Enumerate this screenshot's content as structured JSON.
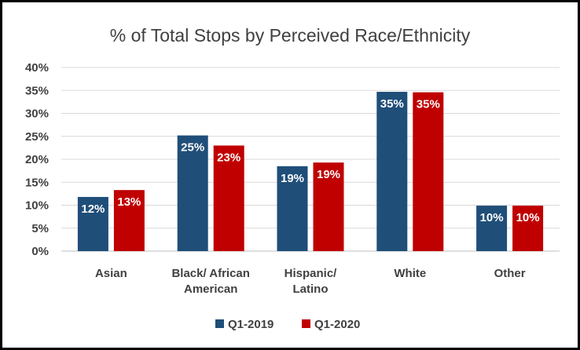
{
  "chart_data": {
    "type": "bar",
    "title": "% of Total Stops by Perceived Race/Ethnicity",
    "categories": [
      [
        "Asian"
      ],
      [
        "Black/ African",
        "American"
      ],
      [
        "Hispanic/",
        "Latino"
      ],
      [
        "White"
      ],
      [
        "Other"
      ]
    ],
    "series": [
      {
        "name": "Q1-2019",
        "color": "#1f4e79",
        "values": [
          11.8,
          25.2,
          18.5,
          34.7,
          9.9
        ],
        "labels": [
          "12%",
          "25%",
          "19%",
          "35%",
          "10%"
        ]
      },
      {
        "name": "Q1-2020",
        "color": "#c00000",
        "values": [
          13.3,
          23.0,
          19.3,
          34.6,
          9.9
        ],
        "labels": [
          "13%",
          "23%",
          "19%",
          "35%",
          "10%"
        ]
      }
    ],
    "ylim": [
      0,
      40
    ],
    "yticks": [
      "0%",
      "5%",
      "10%",
      "15%",
      "20%",
      "25%",
      "30%",
      "35%",
      "40%"
    ],
    "grid": true,
    "legend_position": "bottom"
  }
}
